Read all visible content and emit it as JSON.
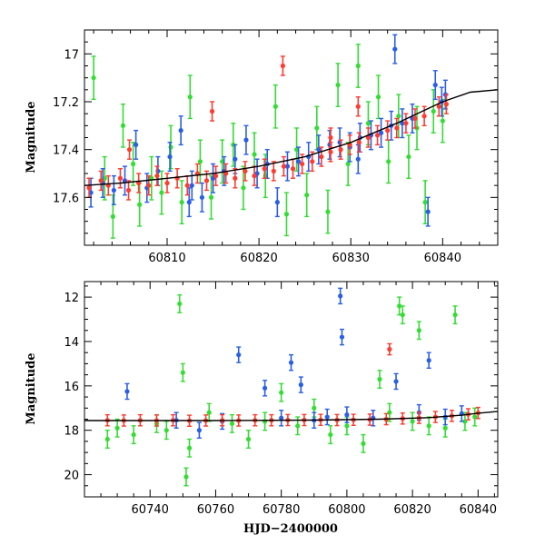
{
  "chart_data": [
    {
      "type": "scatter",
      "panel": "top",
      "xlim": [
        60801,
        60846
      ],
      "ylim": [
        17.8,
        16.9
      ],
      "y_inverted": true,
      "xticks": [
        60810,
        60820,
        60830,
        60840
      ],
      "yticks": [
        17,
        17.2,
        17.4,
        17.6
      ],
      "xlabel": "",
      "ylabel": "Magnitude",
      "grid": false,
      "legend": "none",
      "series": [
        {
          "color": "#ff3b2f",
          "points": [
            [
              60801.5,
              17.56
            ],
            [
              60802.8,
              17.53
            ],
            [
              60803.6,
              17.55
            ],
            [
              60804.9,
              17.52
            ],
            [
              60805.8,
              17.57
            ],
            [
              60806.9,
              17.54
            ],
            [
              60808.0,
              17.55
            ],
            [
              60808.9,
              17.51
            ],
            [
              60810.0,
              17.54
            ],
            [
              60811.1,
              17.52
            ],
            [
              60812.2,
              17.55
            ],
            [
              60813.3,
              17.5
            ],
            [
              60814.3,
              17.53
            ],
            [
              60815.3,
              17.51
            ],
            [
              60816.4,
              17.5
            ],
            [
              60817.4,
              17.52
            ],
            [
              60818.5,
              17.49
            ],
            [
              60819.5,
              17.51
            ],
            [
              60820.6,
              17.48
            ],
            [
              60821.6,
              17.49
            ],
            [
              60822.7,
              17.47
            ],
            [
              60823.7,
              17.48
            ],
            [
              60824.7,
              17.46
            ],
            [
              60825.8,
              17.45
            ],
            [
              60826.8,
              17.43
            ],
            [
              60827.8,
              17.41
            ],
            [
              60828.9,
              17.4
            ],
            [
              60829.9,
              17.38
            ],
            [
              60830.9,
              17.37
            ],
            [
              60831.9,
              17.35
            ],
            [
              60832.9,
              17.34
            ],
            [
              60834.0,
              17.32
            ],
            [
              60835.0,
              17.31
            ],
            [
              60836.0,
              17.29
            ],
            [
              60837.0,
              17.27
            ],
            [
              60838.0,
              17.26
            ],
            [
              60839.6,
              17.22
            ],
            [
              60840.4,
              17.21
            ],
            [
              60814.9,
              17.24
            ],
            [
              60822.6,
              17.05
            ],
            [
              60830.8,
              17.22
            ],
            [
              60827.8,
              17.35
            ],
            [
              60805.9,
              17.4
            ]
          ],
          "yerr": 0.04
        },
        {
          "color": "#2a5ee8",
          "points": [
            [
              60801.7,
              17.58
            ],
            [
              60803.0,
              17.54
            ],
            [
              60804.2,
              17.57
            ],
            [
              60805.4,
              17.53
            ],
            [
              60806.6,
              17.38
            ],
            [
              60807.8,
              17.56
            ],
            [
              60809.0,
              17.49
            ],
            [
              60810.3,
              17.43
            ],
            [
              60811.5,
              17.32
            ],
            [
              60812.7,
              17.55
            ],
            [
              60813.8,
              17.6
            ],
            [
              60815.0,
              17.52
            ],
            [
              60816.2,
              17.49
            ],
            [
              60817.4,
              17.44
            ],
            [
              60818.6,
              17.36
            ],
            [
              60819.8,
              17.5
            ],
            [
              60820.9,
              17.46
            ],
            [
              60822.0,
              17.62
            ],
            [
              60823.1,
              17.47
            ],
            [
              60824.3,
              17.45
            ],
            [
              60825.4,
              17.43
            ],
            [
              60826.5,
              17.4
            ],
            [
              60827.7,
              17.38
            ],
            [
              60828.8,
              17.37
            ],
            [
              60829.9,
              17.39
            ],
            [
              60831.0,
              17.35
            ],
            [
              60832.2,
              17.34
            ],
            [
              60833.3,
              17.33
            ],
            [
              60834.4,
              17.3
            ],
            [
              60835.6,
              17.29
            ],
            [
              60836.7,
              17.27
            ],
            [
              60839.2,
              17.13
            ],
            [
              60839.9,
              17.2
            ],
            [
              60840.3,
              17.17
            ],
            [
              60834.8,
              16.98
            ],
            [
              60830.8,
              17.44
            ],
            [
              60812.4,
              17.62
            ],
            [
              60838.4,
              17.66
            ]
          ],
          "yerr": 0.06
        },
        {
          "color": "#33dd33",
          "points": [
            [
              60802.0,
              17.1
            ],
            [
              60803.2,
              17.52
            ],
            [
              60804.1,
              17.68
            ],
            [
              60805.2,
              17.3
            ],
            [
              60806.3,
              17.46
            ],
            [
              60807.0,
              17.63
            ],
            [
              60808.3,
              17.52
            ],
            [
              60809.4,
              17.58
            ],
            [
              60810.4,
              17.39
            ],
            [
              60811.6,
              17.62
            ],
            [
              60812.5,
              17.18
            ],
            [
              60813.6,
              17.45
            ],
            [
              60814.8,
              17.6
            ],
            [
              60816.0,
              17.45
            ],
            [
              60817.2,
              17.38
            ],
            [
              60818.3,
              17.56
            ],
            [
              60819.5,
              17.42
            ],
            [
              60820.7,
              17.51
            ],
            [
              60821.8,
              17.22
            ],
            [
              60823.0,
              17.67
            ],
            [
              60824.1,
              17.4
            ],
            [
              60825.2,
              17.59
            ],
            [
              60826.3,
              17.31
            ],
            [
              60827.5,
              17.66
            ],
            [
              60828.6,
              17.13
            ],
            [
              60829.7,
              17.46
            ],
            [
              60830.8,
              17.05
            ],
            [
              60831.9,
              17.29
            ],
            [
              60833.0,
              17.18
            ],
            [
              60834.1,
              17.45
            ],
            [
              60835.2,
              17.26
            ],
            [
              60836.3,
              17.43
            ],
            [
              60837.2,
              17.31
            ],
            [
              60838.1,
              17.62
            ],
            [
              60839.0,
              17.24
            ],
            [
              60840.0,
              17.28
            ]
          ],
          "yerr": 0.09
        }
      ],
      "model_curve": {
        "color": "#000000",
        "points": [
          [
            60801,
            17.55
          ],
          [
            60805,
            17.54
          ],
          [
            60810,
            17.52
          ],
          [
            60815,
            17.5
          ],
          [
            60820,
            17.47
          ],
          [
            60825,
            17.43
          ],
          [
            60830,
            17.37
          ],
          [
            60835,
            17.29
          ],
          [
            60840,
            17.2
          ],
          [
            60843,
            17.16
          ],
          [
            60846,
            17.15
          ]
        ]
      }
    },
    {
      "type": "scatter",
      "panel": "bottom",
      "xlim": [
        60720,
        60846
      ],
      "ylim": [
        21,
        11.3
      ],
      "y_inverted": true,
      "xticks": [
        60740,
        60760,
        60780,
        60800,
        60820,
        60840
      ],
      "yticks": [
        12,
        14,
        16,
        18,
        20
      ],
      "xlabel": "HJD−2400000",
      "ylabel": "Magnitude",
      "grid": false,
      "legend": "none",
      "series": [
        {
          "color": "#ff3b2f",
          "points": [
            [
              60727,
              17.55
            ],
            [
              60732,
              17.56
            ],
            [
              60737,
              17.55
            ],
            [
              60742,
              17.56
            ],
            [
              60747,
              17.55
            ],
            [
              60752,
              17.57
            ],
            [
              60757,
              17.56
            ],
            [
              60762,
              17.55
            ],
            [
              60767,
              17.56
            ],
            [
              60772,
              17.55
            ],
            [
              60777,
              17.55
            ],
            [
              60782,
              17.54
            ],
            [
              60787,
              17.54
            ],
            [
              60792,
              17.53
            ],
            [
              60797,
              17.54
            ],
            [
              60802,
              17.53
            ],
            [
              60807,
              17.52
            ],
            [
              60812,
              17.5
            ],
            [
              60817,
              17.47
            ],
            [
              60822,
              17.44
            ],
            [
              60827,
              17.4
            ],
            [
              60832,
              17.35
            ],
            [
              60837,
              17.28
            ],
            [
              60840,
              17.22
            ],
            [
              60813,
              14.35
            ]
          ],
          "yerr": 0.25
        },
        {
          "color": "#2a5ee8",
          "points": [
            [
              60733,
              16.25
            ],
            [
              60748,
              17.55
            ],
            [
              60755,
              18.0
            ],
            [
              60762,
              17.6
            ],
            [
              60767,
              14.6
            ],
            [
              60775,
              16.1
            ],
            [
              60780,
              17.45
            ],
            [
              60783,
              14.95
            ],
            [
              60786,
              15.95
            ],
            [
              60790,
              17.55
            ],
            [
              60794,
              17.4
            ],
            [
              60798,
              11.95
            ],
            [
              60798.5,
              13.8
            ],
            [
              60800,
              17.3
            ],
            [
              60808,
              17.45
            ],
            [
              60815,
              15.8
            ],
            [
              60822,
              17.2
            ],
            [
              60825,
              14.85
            ],
            [
              60830,
              17.4
            ],
            [
              60835,
              17.25
            ]
          ],
          "yerr": 0.35
        },
        {
          "color": "#33dd33",
          "points": [
            [
              60727,
              18.4
            ],
            [
              60730,
              17.9
            ],
            [
              60735,
              18.2
            ],
            [
              60742,
              17.7
            ],
            [
              60745,
              18.0
            ],
            [
              60749,
              12.3
            ],
            [
              60750,
              15.4
            ],
            [
              60751,
              20.1
            ],
            [
              60752,
              18.8
            ],
            [
              60758,
              17.2
            ],
            [
              60765,
              17.7
            ],
            [
              60770,
              18.4
            ],
            [
              60775,
              17.6
            ],
            [
              60780,
              16.3
            ],
            [
              60785,
              17.8
            ],
            [
              60790,
              17.0
            ],
            [
              60795,
              18.2
            ],
            [
              60800,
              17.8
            ],
            [
              60805,
              18.6
            ],
            [
              60810,
              15.7
            ],
            [
              60813,
              17.2
            ],
            [
              60816,
              12.4
            ],
            [
              60817,
              12.8
            ],
            [
              60820,
              17.6
            ],
            [
              60822,
              13.5
            ],
            [
              60825,
              17.8
            ],
            [
              60830,
              17.9
            ],
            [
              60833,
              12.8
            ],
            [
              60836,
              17.6
            ],
            [
              60839,
              17.4
            ]
          ],
          "yerr": 0.4
        }
      ],
      "model_curve": {
        "color": "#000000",
        "points": [
          [
            60720,
            17.56
          ],
          [
            60760,
            17.56
          ],
          [
            60790,
            17.54
          ],
          [
            60810,
            17.5
          ],
          [
            60825,
            17.43
          ],
          [
            60835,
            17.32
          ],
          [
            60840,
            17.23
          ],
          [
            60846,
            17.15
          ]
        ]
      }
    }
  ]
}
